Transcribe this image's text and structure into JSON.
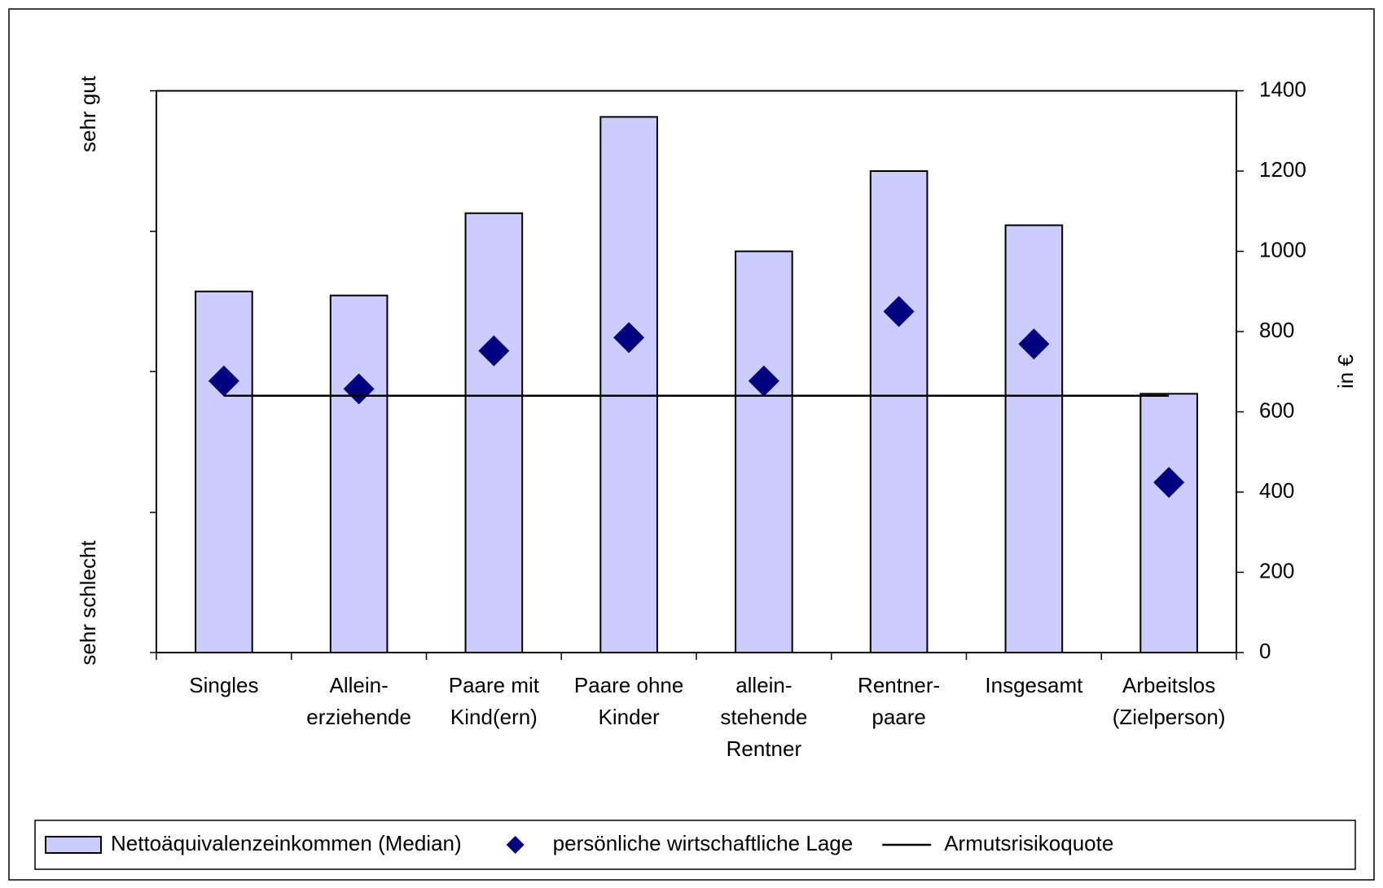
{
  "chart_data": {
    "type": "bar",
    "categories": [
      [
        "Singles"
      ],
      [
        "Allein-",
        "erziehende"
      ],
      [
        "Paare mit",
        "Kind(ern)"
      ],
      [
        "Paare ohne",
        "Kinder"
      ],
      [
        "allein-",
        "stehende",
        "Rentner"
      ],
      [
        "Rentner-",
        "paare"
      ],
      [
        "Insgesamt"
      ],
      [
        "Arbeitslos",
        "(Zielperson)"
      ]
    ],
    "series": [
      {
        "name": "Nettoäquivalenzeinkommen (Median)",
        "type": "bar",
        "color": "#ccccff",
        "axis": "y2",
        "values": [
          900,
          890,
          1095,
          1335,
          1000,
          1200,
          1065,
          645
        ]
      },
      {
        "name": "persönliche wirtschaftliche Lage",
        "type": "scatter",
        "color": "#000080",
        "axis": "y2",
        "values": [
          677,
          657,
          752,
          785,
          677,
          850,
          769,
          424
        ]
      },
      {
        "name": "Armutsrisikoquote",
        "type": "line",
        "color": "#000000",
        "axis": "y2",
        "values": [
          640,
          640,
          640,
          640,
          640,
          640,
          640,
          640
        ]
      }
    ],
    "y_top_label": "sehr gut",
    "y_bottom_label": "sehr schlecht",
    "y2label": "in €",
    "y2lim": [
      0,
      1400
    ],
    "y2ticks": [
      0,
      200,
      400,
      600,
      800,
      1000,
      1200,
      1400
    ],
    "legend": "bottom"
  }
}
